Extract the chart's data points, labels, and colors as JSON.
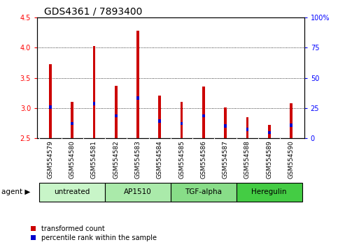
{
  "title": "GDS4361 / 7893400",
  "samples": [
    "GSM554579",
    "GSM554580",
    "GSM554581",
    "GSM554582",
    "GSM554583",
    "GSM554584",
    "GSM554585",
    "GSM554586",
    "GSM554587",
    "GSM554588",
    "GSM554589",
    "GSM554590"
  ],
  "transformed_count": [
    3.73,
    3.1,
    4.02,
    3.37,
    4.28,
    3.21,
    3.1,
    3.36,
    3.01,
    2.85,
    2.72,
    3.08
  ],
  "percentile_bottom": [
    2.99,
    2.72,
    3.04,
    2.85,
    3.14,
    2.76,
    2.72,
    2.85,
    2.68,
    2.62,
    2.57,
    2.69
  ],
  "percentile_top": [
    3.04,
    2.77,
    3.1,
    2.9,
    3.19,
    2.81,
    2.77,
    2.9,
    2.73,
    2.67,
    2.62,
    2.74
  ],
  "ylim_left": [
    2.5,
    4.5
  ],
  "ylim_right": [
    0,
    100
  ],
  "yticks_left": [
    2.5,
    3.0,
    3.5,
    4.0,
    4.5
  ],
  "yticks_right": [
    0,
    25,
    50,
    75,
    100
  ],
  "ytick_labels_right": [
    "0",
    "25",
    "50",
    "75",
    "100%"
  ],
  "groups": [
    {
      "label": "untreated",
      "start": 0,
      "end": 2,
      "color": "#c8f5c8"
    },
    {
      "label": "AP1510",
      "start": 3,
      "end": 5,
      "color": "#aaeaaa"
    },
    {
      "label": "TGF-alpha",
      "start": 6,
      "end": 8,
      "color": "#88dd88"
    },
    {
      "label": "Heregulin",
      "start": 9,
      "end": 11,
      "color": "#44cc44"
    }
  ],
  "bar_color": "#cc0000",
  "percentile_color": "#0000cc",
  "bar_width": 0.12,
  "background_color": "#ffffff",
  "plot_bg_color": "#ffffff",
  "tick_bg_color": "#d0d0d0",
  "title_fontsize": 10,
  "tick_fontsize": 7
}
